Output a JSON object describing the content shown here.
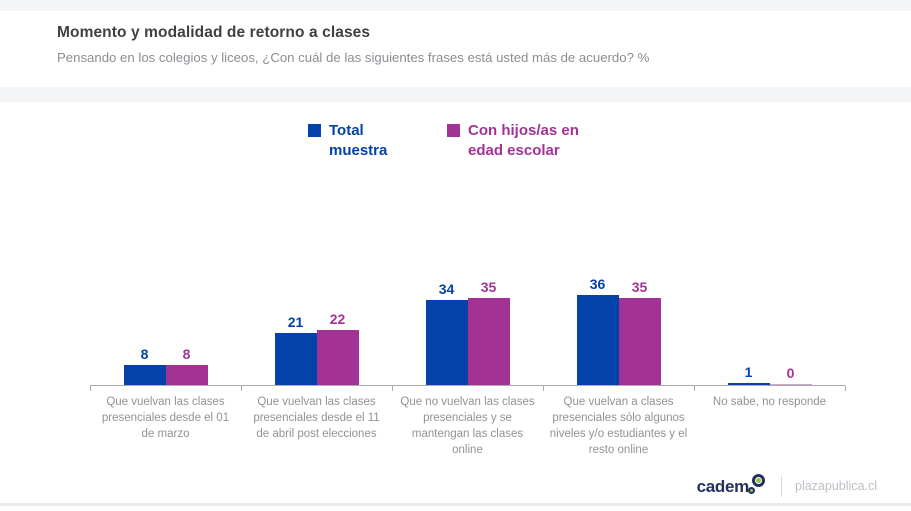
{
  "header": {
    "title": "Momento y modalidad de retorno a clases",
    "subtitle": "Pensando en los colegios y liceos, ¿Con cuál de las siguientes frases está usted más de acuerdo? %"
  },
  "chart_data": {
    "type": "bar",
    "title": "Momento y modalidad de retorno a clases",
    "categories": [
      "Que vuelvan las clases presenciales desde el 01 de marzo",
      "Que vuelvan las clases presenciales desde el 11 de abril post elecciones",
      "Que no vuelvan las clases presenciales y se mantengan las clases online",
      "Que vuelvan a clases presenciales sólo algunos niveles y/o estudiantes y el resto online",
      "No sabe, no responde"
    ],
    "series": [
      {
        "name": "Total muestra",
        "color": "#0342A8",
        "values": [
          8,
          21,
          34,
          36,
          1
        ]
      },
      {
        "name": "Con hijos/as en edad escolar",
        "color": "#A23395",
        "zero_color": "#CBA6C8",
        "values": [
          8,
          22,
          35,
          35,
          0
        ]
      }
    ],
    "ylim": [
      0,
      40
    ],
    "grid": false,
    "legend_position": "top",
    "value_labels": true,
    "unit": "%"
  },
  "footer": {
    "brand": "cadem",
    "site": "plazapublica.cl"
  }
}
